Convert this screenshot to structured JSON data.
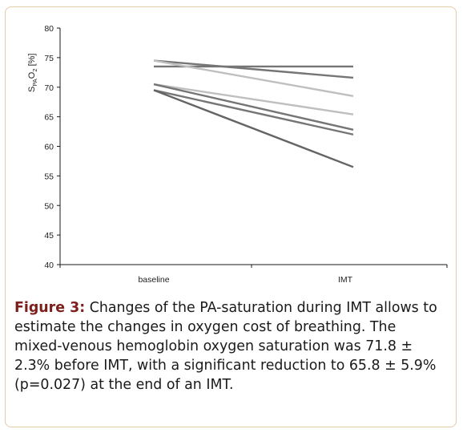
{
  "figure": {
    "label": "Figure 3:",
    "caption": "Changes of the PA-saturation during IMT allows to estimate the changes in oxygen cost of breathing. The mixed-venous hemoglobin oxygen saturation was 71.8 ± 2.3% before IMT, with a significant reduction to 65.8 ± 5.9% (p=0.027) at the end of an IMT."
  },
  "chart_data": {
    "type": "line",
    "title": "",
    "xlabel": "",
    "ylabel": "SPAO2 [%]",
    "ylabel_parts": {
      "main": "S",
      "sub1": "PA",
      "mid": "O",
      "sub2": "2",
      "unit": " [%]"
    },
    "categories": [
      "baseline",
      "IMT"
    ],
    "ylim": [
      40,
      80
    ],
    "yticks": [
      40,
      45,
      50,
      55,
      60,
      65,
      70,
      75,
      80
    ],
    "grid": false,
    "legend": "none",
    "series": [
      {
        "values": [
          74.5,
          71.6
        ],
        "color": "#757575"
      },
      {
        "values": [
          73.5,
          73.5
        ],
        "color": "#757575"
      },
      {
        "values": [
          74.5,
          68.5
        ],
        "color": "#bfbfbf"
      },
      {
        "values": [
          70.5,
          65.4
        ],
        "color": "#bfbfbf"
      },
      {
        "values": [
          70.5,
          62.8
        ],
        "color": "#757575"
      },
      {
        "values": [
          69.5,
          62.0
        ],
        "color": "#757575"
      },
      {
        "values": [
          69.5,
          56.5
        ],
        "color": "#646464"
      }
    ]
  }
}
